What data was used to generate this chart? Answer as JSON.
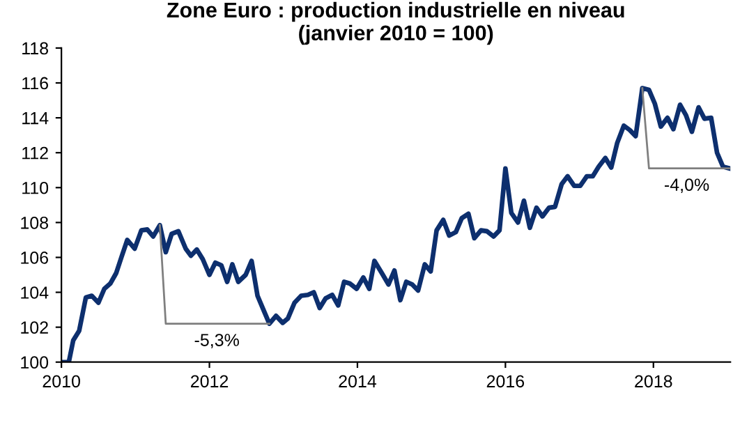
{
  "chart_data": {
    "type": "line",
    "title": "Zone Euro : production industrielle en niveau\n(janvier 2010 = 100)",
    "xlim": [
      2010,
      2019.04
    ],
    "xticks": [
      2010,
      2012,
      2014,
      2016,
      2018
    ],
    "ylim": [
      100,
      118
    ],
    "yticks": [
      100,
      102,
      104,
      106,
      108,
      110,
      112,
      114,
      116,
      118
    ],
    "grid": false,
    "legend": false,
    "line_style": "solid",
    "marker": "none",
    "series": [
      {
        "color": "#0d2f6e",
        "x": [
          2010.0,
          2010.1,
          2010.16,
          2010.24,
          2010.33,
          2010.41,
          2010.5,
          2010.58,
          2010.66,
          2010.74,
          2010.81,
          2010.89,
          2010.99,
          2011.08,
          2011.16,
          2011.24,
          2011.33,
          2011.41,
          2011.49,
          2011.58,
          2011.68,
          2011.75,
          2011.83,
          2011.91,
          2012.0,
          2012.08,
          2012.16,
          2012.24,
          2012.31,
          2012.39,
          2012.49,
          2012.57,
          2012.65,
          2012.73,
          2012.81,
          2012.9,
          2012.99,
          2013.06,
          2013.15,
          2013.24,
          2013.33,
          2013.41,
          2013.49,
          2013.57,
          2013.66,
          2013.74,
          2013.82,
          2013.9,
          2013.99,
          2014.08,
          2014.16,
          2014.23,
          2014.33,
          2014.42,
          2014.5,
          2014.58,
          2014.66,
          2014.74,
          2014.82,
          2014.91,
          2014.99,
          2015.07,
          2015.16,
          2015.24,
          2015.33,
          2015.41,
          2015.5,
          2015.58,
          2015.67,
          2015.75,
          2015.84,
          2015.92,
          2016.0,
          2016.08,
          2016.17,
          2016.25,
          2016.33,
          2016.42,
          2016.5,
          2016.59,
          2016.67,
          2016.76,
          2016.84,
          2016.93,
          2017.01,
          2017.1,
          2017.18,
          2017.26,
          2017.35,
          2017.43,
          2017.51,
          2017.6,
          2017.68,
          2017.76,
          2017.85,
          2017.94,
          2018.02,
          2018.1,
          2018.19,
          2018.27,
          2018.36,
          2018.44,
          2018.52,
          2018.61,
          2018.69,
          2018.78,
          2018.86,
          2018.94,
          2019.03
        ],
        "values": [
          100.0,
          100.0,
          101.25,
          101.8,
          103.7,
          103.8,
          103.4,
          104.2,
          104.5,
          105.1,
          106.0,
          107.0,
          106.5,
          107.55,
          107.6,
          107.2,
          107.85,
          106.3,
          107.35,
          107.5,
          106.5,
          106.1,
          106.45,
          105.9,
          105.0,
          105.7,
          105.55,
          104.6,
          105.6,
          104.6,
          105.0,
          105.8,
          103.8,
          103.0,
          102.2,
          102.65,
          102.25,
          102.5,
          103.4,
          103.8,
          103.85,
          104.0,
          103.1,
          103.65,
          103.85,
          103.25,
          104.6,
          104.5,
          104.2,
          104.85,
          104.2,
          105.8,
          105.1,
          104.45,
          105.25,
          103.55,
          104.6,
          104.45,
          104.1,
          105.6,
          105.2,
          107.55,
          108.15,
          107.25,
          107.45,
          108.25,
          108.5,
          107.1,
          107.55,
          107.5,
          107.2,
          107.55,
          111.1,
          108.55,
          108.0,
          109.25,
          107.7,
          108.85,
          108.35,
          108.85,
          108.9,
          110.2,
          110.65,
          110.1,
          110.1,
          110.65,
          110.65,
          111.2,
          111.7,
          111.15,
          112.55,
          113.55,
          113.3,
          112.95,
          115.7,
          115.6,
          114.8,
          113.5,
          114.0,
          113.35,
          114.75,
          114.15,
          113.2,
          114.6,
          113.95,
          114.0,
          112.0,
          111.2,
          111.1
        ]
      },
      {
        "color": "#7f7f7f",
        "x": [
          2011.33,
          2011.41,
          2012.81
        ],
        "values": [
          107.85,
          102.2,
          102.2
        ]
      },
      {
        "color": "#7f7f7f",
        "x": [
          2017.85,
          2017.94,
          2019.03
        ],
        "values": [
          115.7,
          111.1,
          111.1
        ]
      }
    ],
    "annotations": [
      {
        "text": "-5,3%",
        "x": 2012.1,
        "y": 102.2
      },
      {
        "text": "-4,0%",
        "x": 2018.45,
        "y": 111.1
      }
    ]
  }
}
